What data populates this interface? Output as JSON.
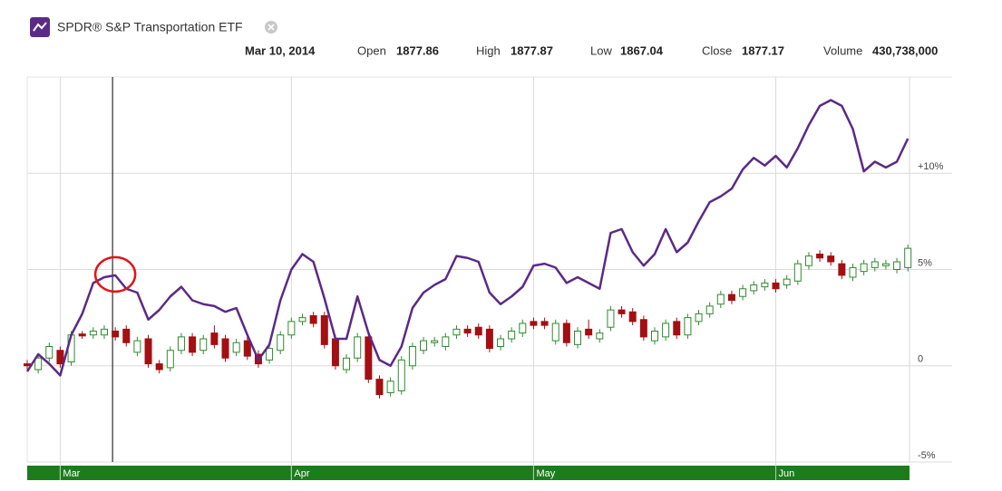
{
  "chart_data": {
    "type": "candlestick",
    "title": "SPDR® S&P Transportation ETF",
    "hover": {
      "date": "Mar 10, 2014",
      "fields": [
        {
          "label": "Open",
          "value": 1877.86
        },
        {
          "label": "High",
          "value": 1877.87
        },
        {
          "label": "Low",
          "value": 1867.04
        },
        {
          "label": "Close",
          "value": 1877.17
        },
        {
          "label": "Volume",
          "value": 430738000,
          "value_label": "430,738,000"
        }
      ]
    },
    "categories": [
      null,
      null,
      null,
      "Mar",
      null,
      null,
      null,
      null,
      null,
      null,
      null,
      null,
      null,
      null,
      null,
      null,
      null,
      null,
      null,
      null,
      null,
      null,
      null,
      null,
      "Apr",
      null,
      null,
      null,
      null,
      null,
      null,
      null,
      null,
      null,
      null,
      null,
      null,
      null,
      null,
      null,
      null,
      null,
      null,
      null,
      null,
      null,
      "May",
      null,
      null,
      null,
      null,
      null,
      null,
      null,
      null,
      null,
      null,
      null,
      null,
      null,
      null,
      null,
      null,
      null,
      null,
      null,
      null,
      null,
      "Jun",
      null,
      null,
      null,
      null,
      null,
      null,
      null,
      null,
      null,
      null,
      null,
      null
    ],
    "open": [
      0.1,
      -0.2,
      0.4,
      0.8,
      0.2,
      1.65,
      1.6,
      1.6,
      1.8,
      1.9,
      0.7,
      1.4,
      0.1,
      -0.1,
      0.8,
      1.5,
      0.8,
      1.7,
      1.4,
      0.7,
      1.3,
      0.6,
      0.3,
      0.8,
      1.6,
      2.3,
      2.6,
      2.6,
      1.4,
      -0.2,
      0.4,
      1.5,
      -0.7,
      -1.4,
      -1.3,
      0.0,
      0.8,
      1.2,
      1.0,
      1.6,
      1.9,
      2.0,
      1.9,
      1.0,
      1.4,
      1.7,
      2.3,
      2.3,
      1.3,
      2.2,
      1.1,
      1.9,
      1.4,
      2.0,
      2.9,
      2.8,
      2.4,
      1.3,
      1.5,
      2.3,
      1.6,
      2.3,
      2.7,
      3.2,
      3.7,
      3.6,
      3.9,
      4.1,
      4.3,
      4.2,
      4.4,
      5.2,
      5.8,
      5.7,
      5.3,
      4.6,
      4.9,
      5.1,
      5.2,
      5.0,
      5.1
    ],
    "high": [
      0.3,
      0.6,
      1.2,
      1.0,
      1.8,
      1.8,
      2.0,
      2.1,
      2.0,
      2.1,
      1.5,
      1.6,
      0.3,
      1.0,
      1.7,
      1.7,
      1.6,
      2.1,
      1.6,
      1.4,
      1.5,
      0.8,
      1.1,
      1.8,
      2.5,
      2.7,
      2.8,
      2.8,
      1.6,
      0.6,
      1.7,
      1.7,
      -0.5,
      -0.6,
      0.5,
      1.2,
      1.5,
      1.5,
      1.7,
      2.1,
      2.1,
      2.2,
      2.1,
      1.6,
      2.0,
      2.4,
      2.5,
      2.5,
      2.4,
      2.4,
      2.0,
      2.4,
      1.9,
      3.1,
      3.1,
      3.0,
      2.6,
      2.0,
      2.4,
      2.5,
      2.7,
      2.9,
      3.3,
      3.9,
      3.9,
      4.2,
      4.4,
      4.5,
      4.5,
      4.7,
      5.5,
      5.9,
      6.0,
      5.9,
      5.5,
      5.3,
      5.5,
      5.6,
      5.5,
      5.6,
      6.3
    ],
    "low": [
      -0.2,
      -0.4,
      0.2,
      -0.1,
      0.0,
      1.4,
      1.4,
      1.4,
      1.3,
      1.0,
      0.5,
      -0.1,
      -0.4,
      -0.3,
      0.6,
      0.5,
      0.6,
      0.9,
      0.2,
      0.5,
      0.3,
      -0.1,
      0.1,
      0.6,
      1.4,
      2.1,
      2.0,
      0.9,
      -0.2,
      -0.4,
      0.2,
      -0.9,
      -1.7,
      -1.6,
      -1.5,
      -0.2,
      0.6,
      1.0,
      0.8,
      1.4,
      1.5,
      1.4,
      0.7,
      0.8,
      1.2,
      1.5,
      1.9,
      1.9,
      1.1,
      1.0,
      0.9,
      1.4,
      1.2,
      1.8,
      2.5,
      2.1,
      1.3,
      1.1,
      1.3,
      1.4,
      1.4,
      2.1,
      2.5,
      3.0,
      3.2,
      3.4,
      3.7,
      3.9,
      3.8,
      4.0,
      4.2,
      5.0,
      5.4,
      5.2,
      4.5,
      4.4,
      4.7,
      4.9,
      5.0,
      4.8,
      4.9
    ],
    "close": [
      0.0,
      0.4,
      1.0,
      0.1,
      1.6,
      1.55,
      1.8,
      1.9,
      1.5,
      1.2,
      1.3,
      0.1,
      -0.2,
      0.8,
      1.5,
      0.7,
      1.4,
      1.1,
      0.4,
      1.2,
      0.5,
      0.1,
      0.9,
      1.6,
      2.3,
      2.5,
      2.2,
      1.1,
      0.0,
      0.4,
      1.5,
      -0.7,
      -1.5,
      -0.8,
      0.3,
      1.0,
      1.3,
      1.3,
      1.5,
      1.9,
      1.7,
      1.6,
      0.9,
      1.4,
      1.8,
      2.2,
      2.1,
      2.1,
      2.2,
      1.2,
      1.8,
      1.6,
      1.7,
      2.9,
      2.7,
      2.3,
      1.5,
      1.8,
      2.2,
      1.6,
      2.5,
      2.7,
      3.1,
      3.7,
      3.4,
      4.0,
      4.2,
      4.3,
      4.0,
      4.5,
      5.3,
      5.7,
      5.6,
      5.4,
      4.7,
      5.1,
      5.3,
      5.4,
      5.3,
      5.4,
      6.1
    ],
    "up_color": "#2e8b2e",
    "down_color": "#a30f12",
    "line": {
      "color": "#5b2a86",
      "values": [
        -0.3,
        0.6,
        0.1,
        -0.5,
        1.6,
        2.7,
        4.3,
        4.6,
        4.7,
        4.0,
        3.8,
        2.4,
        2.9,
        3.6,
        4.1,
        3.4,
        3.2,
        3.1,
        2.8,
        3.0,
        1.6,
        0.3,
        1.1,
        3.4,
        5.0,
        5.8,
        5.4,
        3.5,
        1.4,
        1.4,
        3.6,
        1.7,
        0.3,
        0.0,
        1.0,
        3.0,
        3.8,
        4.2,
        4.5,
        5.7,
        5.6,
        5.4,
        3.8,
        3.2,
        3.6,
        4.1,
        5.2,
        5.3,
        5.1,
        4.3,
        4.6,
        4.3,
        4.0,
        6.9,
        7.1,
        5.9,
        5.2,
        5.8,
        7.1,
        5.9,
        6.4,
        7.5,
        8.5,
        8.8,
        9.2,
        10.2,
        10.8,
        10.4,
        10.9,
        10.3,
        11.3,
        12.5,
        13.5,
        13.8,
        13.5,
        12.3,
        10.1,
        10.6,
        10.3,
        10.6,
        11.8
      ]
    },
    "ylim": [
      -5,
      15
    ],
    "yticks": [
      {
        "value": -5,
        "label": "-5%"
      },
      {
        "value": 0,
        "label": "0"
      },
      {
        "value": 5,
        "label": "5%"
      },
      {
        "value": 10,
        "label": "+10%"
      }
    ],
    "grid": true,
    "month_bar_color": "#1c7c1c"
  }
}
